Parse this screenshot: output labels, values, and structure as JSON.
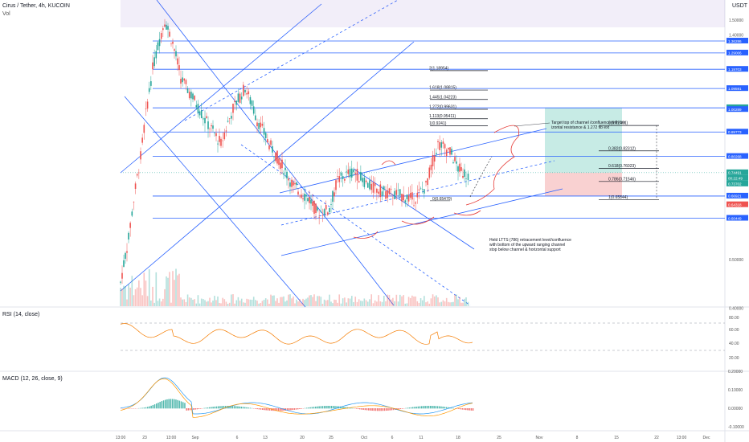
{
  "header": {
    "symbol_title": "Cirus / Tether, 4h, KUCOIN",
    "vol_label": "Vol",
    "currency": "USDT"
  },
  "rsi_panel": {
    "label": "RSI (14, close)",
    "ticks": [
      "80.00",
      "60.00",
      "40.00",
      "20.00"
    ]
  },
  "macd_panel": {
    "label": "MACD (12, 26, close, 9)",
    "ticks": [
      "0.20000",
      "0.10000",
      "0.00000",
      "-0.10000"
    ]
  },
  "price_axis": {
    "ticks": [
      "1.50000",
      "1.40000",
      "1.20000",
      "1.00000",
      "0.80000",
      "0.50000",
      "0.40000"
    ],
    "tag_values": [
      "1.36286",
      "1.29006",
      "1.19703",
      "1.09591",
      "1.00375",
      "1.00289",
      "0.89773",
      "0.80268",
      "0.74491",
      "00:22:49",
      "0.73702",
      "0.66921",
      "0.64318",
      "0.60449"
    ]
  },
  "time_axis": {
    "labels": [
      "13:00",
      "23",
      "13:00",
      "Sep",
      "6",
      "13",
      "20",
      "25",
      "Oct",
      "6",
      "11",
      "18",
      "25",
      "Nov",
      "8",
      "15",
      "22",
      "13:00",
      "Dec"
    ]
  },
  "fib_levels_upper": [
    "2(1.18954)",
    "1.618(1.08815)",
    "1.445(1.04223)",
    "1.272(0.99631)",
    "1.113(0.95411)",
    "1(0.9241)"
  ],
  "fib_levels_lower": [
    "0(0.92491)",
    "0.382(0.82312)",
    "0.618(0.76023)",
    "0.786(0.71546)",
    "1(0.65844)"
  ],
  "fib_low_marker": "0(0.65470)",
  "annotations": {
    "target": "Target top of channel /confluence with horizontal resistance & 1.272 fib ext",
    "held_line1": "Held LTTS (786) retracement level/confluence",
    "held_line2": "with bottom of the upward ranging channel",
    "held_line3": "stop below channel & horizontal support"
  },
  "colors": {
    "up": "#26a69a",
    "down": "#ef5350",
    "hline": "#2962ff",
    "rsi": "#f57c00",
    "macd": "#2196f3",
    "signal": "#ff9800"
  },
  "chart_data": {
    "type": "candlestick",
    "series": [
      {
        "name": "Cirus / Tether, 4h, KUCOIN",
        "approx_closes": [
          0.45,
          0.55,
          0.8,
          1.2,
          1.5,
          1.35,
          1.15,
          1.05,
          0.95,
          0.9,
          0.85,
          1.0,
          1.1,
          0.95,
          0.85,
          0.8,
          0.75,
          0.7,
          0.68,
          0.66,
          0.62,
          0.63,
          0.72,
          0.75,
          0.7,
          0.68,
          0.67,
          0.66,
          0.7,
          0.85,
          0.82,
          0.76,
          0.74,
          0.745
        ]
      }
    ],
    "ylim": [
      0.38,
      1.6
    ]
  }
}
